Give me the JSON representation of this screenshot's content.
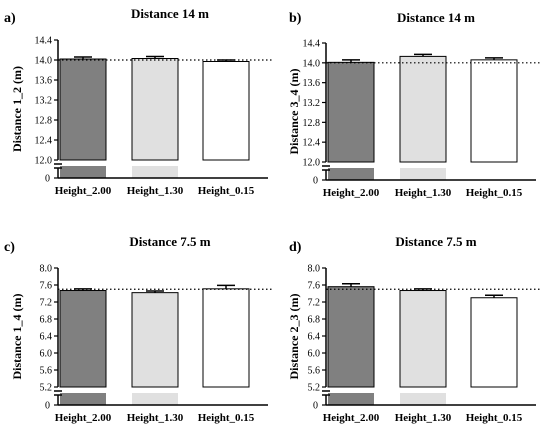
{
  "chart_data": [
    {
      "type": "bar",
      "panel_label": "a)",
      "title": "Distance 14 m",
      "ylabel": "Distance 1_2 (m)",
      "categories": [
        "Height_2.00",
        "Height_1.30",
        "Height_0.15"
      ],
      "values": [
        14.02,
        14.03,
        13.97
      ],
      "errors": [
        0.04,
        0.04,
        0.03
      ],
      "ylim": [
        12.0,
        14.4
      ],
      "yticks": [
        "12.0",
        "12.4",
        "12.8",
        "13.2",
        "13.6",
        "14.0",
        "14.4"
      ],
      "reference_line": 14.0,
      "bar_colors": [
        "#808080",
        "#e0e0e0",
        "#ffffff"
      ]
    },
    {
      "type": "bar",
      "panel_label": "b)",
      "title": "Distance 14 m",
      "ylabel": "Distance 3_4 (m)",
      "categories": [
        "Height_2.00",
        "Height_1.30",
        "Height_0.15"
      ],
      "values": [
        14.01,
        14.13,
        14.06
      ],
      "errors": [
        0.05,
        0.04,
        0.04
      ],
      "ylim": [
        12.0,
        14.4
      ],
      "yticks": [
        "12.0",
        "12.4",
        "12.8",
        "13.2",
        "13.6",
        "14.0",
        "14.4"
      ],
      "reference_line": 14.0,
      "bar_colors": [
        "#808080",
        "#e0e0e0",
        "#ffffff"
      ]
    },
    {
      "type": "bar",
      "panel_label": "c)",
      "title": "Distance 7.5 m",
      "ylabel": "Distance 1_4 (m)",
      "categories": [
        "Height_2.00",
        "Height_1.30",
        "Height_0.15"
      ],
      "values": [
        7.47,
        7.42,
        7.51
      ],
      "errors": [
        0.04,
        0.04,
        0.08
      ],
      "ylim": [
        5.2,
        8.0
      ],
      "yticks": [
        "5.2",
        "5.6",
        "6.0",
        "6.4",
        "6.8",
        "7.2",
        "7.6",
        "8.0"
      ],
      "reference_line": 7.5,
      "bar_colors": [
        "#808080",
        "#e0e0e0",
        "#ffffff"
      ]
    },
    {
      "type": "bar",
      "panel_label": "d)",
      "title": "Distance 7.5 m",
      "ylabel": "Distance 2_3 (m)",
      "categories": [
        "Height_2.00",
        "Height_1.30",
        "Height_0.15"
      ],
      "values": [
        7.56,
        7.47,
        7.3
      ],
      "errors": [
        0.07,
        0.04,
        0.06
      ],
      "ylim": [
        5.2,
        8.0
      ],
      "yticks": [
        "5.2",
        "5.6",
        "6.0",
        "6.4",
        "6.8",
        "7.2",
        "7.6",
        "8.0"
      ],
      "reference_line": 7.5,
      "bar_colors": [
        "#808080",
        "#e0e0e0",
        "#ffffff"
      ]
    }
  ]
}
